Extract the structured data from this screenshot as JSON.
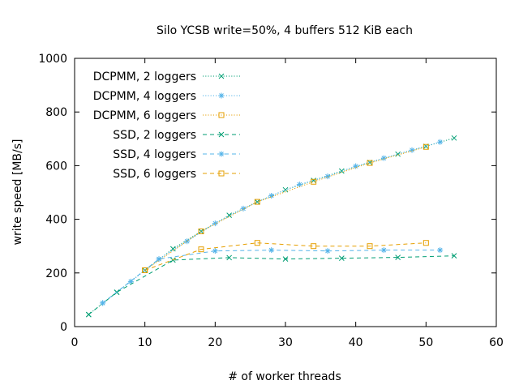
{
  "chart_data": {
    "type": "line",
    "title": "Silo YCSB write=50%, 4 buffers 512 KiB each",
    "xlabel": "# of worker threads",
    "ylabel": "write speed [MB/s]",
    "xlim": [
      0,
      60
    ],
    "ylim": [
      0,
      1000
    ],
    "xticks": [
      "0",
      "10",
      "20",
      "30",
      "40",
      "50",
      "60"
    ],
    "yticks": [
      "0",
      "200",
      "400",
      "600",
      "800",
      "1000"
    ],
    "grid": false,
    "legend_position": "top-left",
    "series": [
      {
        "name": "DCPMM, 2 loggers",
        "color": "#009e73",
        "marker": "x",
        "dash": "dotted",
        "x": [
          2,
          6,
          10,
          14,
          18,
          22,
          26,
          30,
          34,
          38,
          42,
          46,
          50,
          54
        ],
        "y": [
          45,
          128,
          210,
          290,
          355,
          415,
          465,
          510,
          545,
          580,
          612,
          643,
          672,
          703
        ]
      },
      {
        "name": "DCPMM, 4 loggers",
        "color": "#56b4e9",
        "marker": "asterisk",
        "dash": "dotted",
        "x": [
          4,
          8,
          12,
          16,
          20,
          24,
          28,
          32,
          36,
          40,
          44,
          48,
          52
        ],
        "y": [
          88,
          168,
          252,
          318,
          385,
          440,
          488,
          530,
          560,
          598,
          628,
          658,
          688
        ]
      },
      {
        "name": "DCPMM, 6 loggers",
        "color": "#e69f00",
        "marker": "square",
        "dash": "dotted",
        "x": [
          10,
          18,
          26,
          34,
          42,
          50
        ],
        "y": [
          210,
          355,
          465,
          540,
          610,
          670
        ]
      },
      {
        "name": "SSD, 2 loggers",
        "color": "#009e73",
        "marker": "x",
        "dash": "dashed",
        "x": [
          2,
          6,
          14,
          22,
          30,
          38,
          46,
          54
        ],
        "y": [
          45,
          128,
          248,
          257,
          252,
          255,
          258,
          264
        ]
      },
      {
        "name": "SSD, 4 loggers",
        "color": "#56b4e9",
        "marker": "asterisk",
        "dash": "dashed",
        "x": [
          4,
          12,
          20,
          28,
          36,
          44,
          52
        ],
        "y": [
          88,
          252,
          282,
          285,
          282,
          285,
          285
        ]
      },
      {
        "name": "SSD, 6 loggers",
        "color": "#e69f00",
        "marker": "square",
        "dash": "dashed",
        "x": [
          10,
          18,
          26,
          34,
          42,
          50
        ],
        "y": [
          210,
          288,
          312,
          300,
          300,
          312
        ]
      }
    ]
  }
}
